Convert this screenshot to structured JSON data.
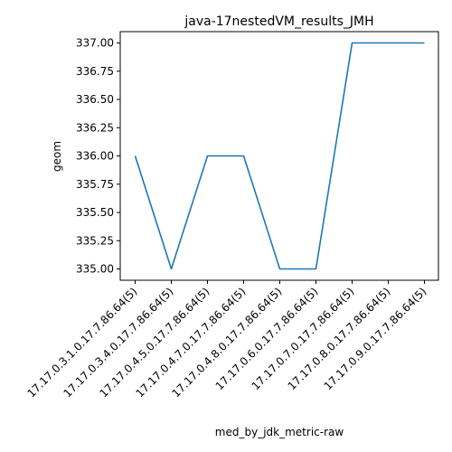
{
  "chart_data": {
    "type": "line",
    "title": "java-17nestedVM_results_JMH",
    "xlabel": "med_by_jdk_metric-raw",
    "ylabel": "geom",
    "categories": [
      "17.17.0.3.1.0.17.7.86.64(5)",
      "17.17.0.3.4.0.17.7.86.64(5)",
      "17.17.0.4.5.0.17.7.86.64(5)",
      "17.17.0.4.7.0.17.7.86.64(5)",
      "17.17.0.4.8.0.17.7.86.64(5)",
      "17.17.0.6.0.17.7.86.64(5)",
      "17.17.0.7.0.17.7.86.64(5)",
      "17.17.0.8.0.17.7.86.64(5)",
      "17.17.0.9.0.17.7.86.64(5)"
    ],
    "series": [
      {
        "values": [
          336.0,
          335.0,
          336.0,
          336.0,
          335.0,
          335.0,
          337.0,
          337.0,
          337.0
        ],
        "color": "#1f77b4"
      }
    ],
    "ylim": [
      334.9,
      337.1
    ],
    "yticks": [
      "335.00",
      "335.25",
      "335.50",
      "335.75",
      "336.00",
      "336.25",
      "336.50",
      "336.75",
      "337.00"
    ],
    "grid": false,
    "legend": "none"
  }
}
